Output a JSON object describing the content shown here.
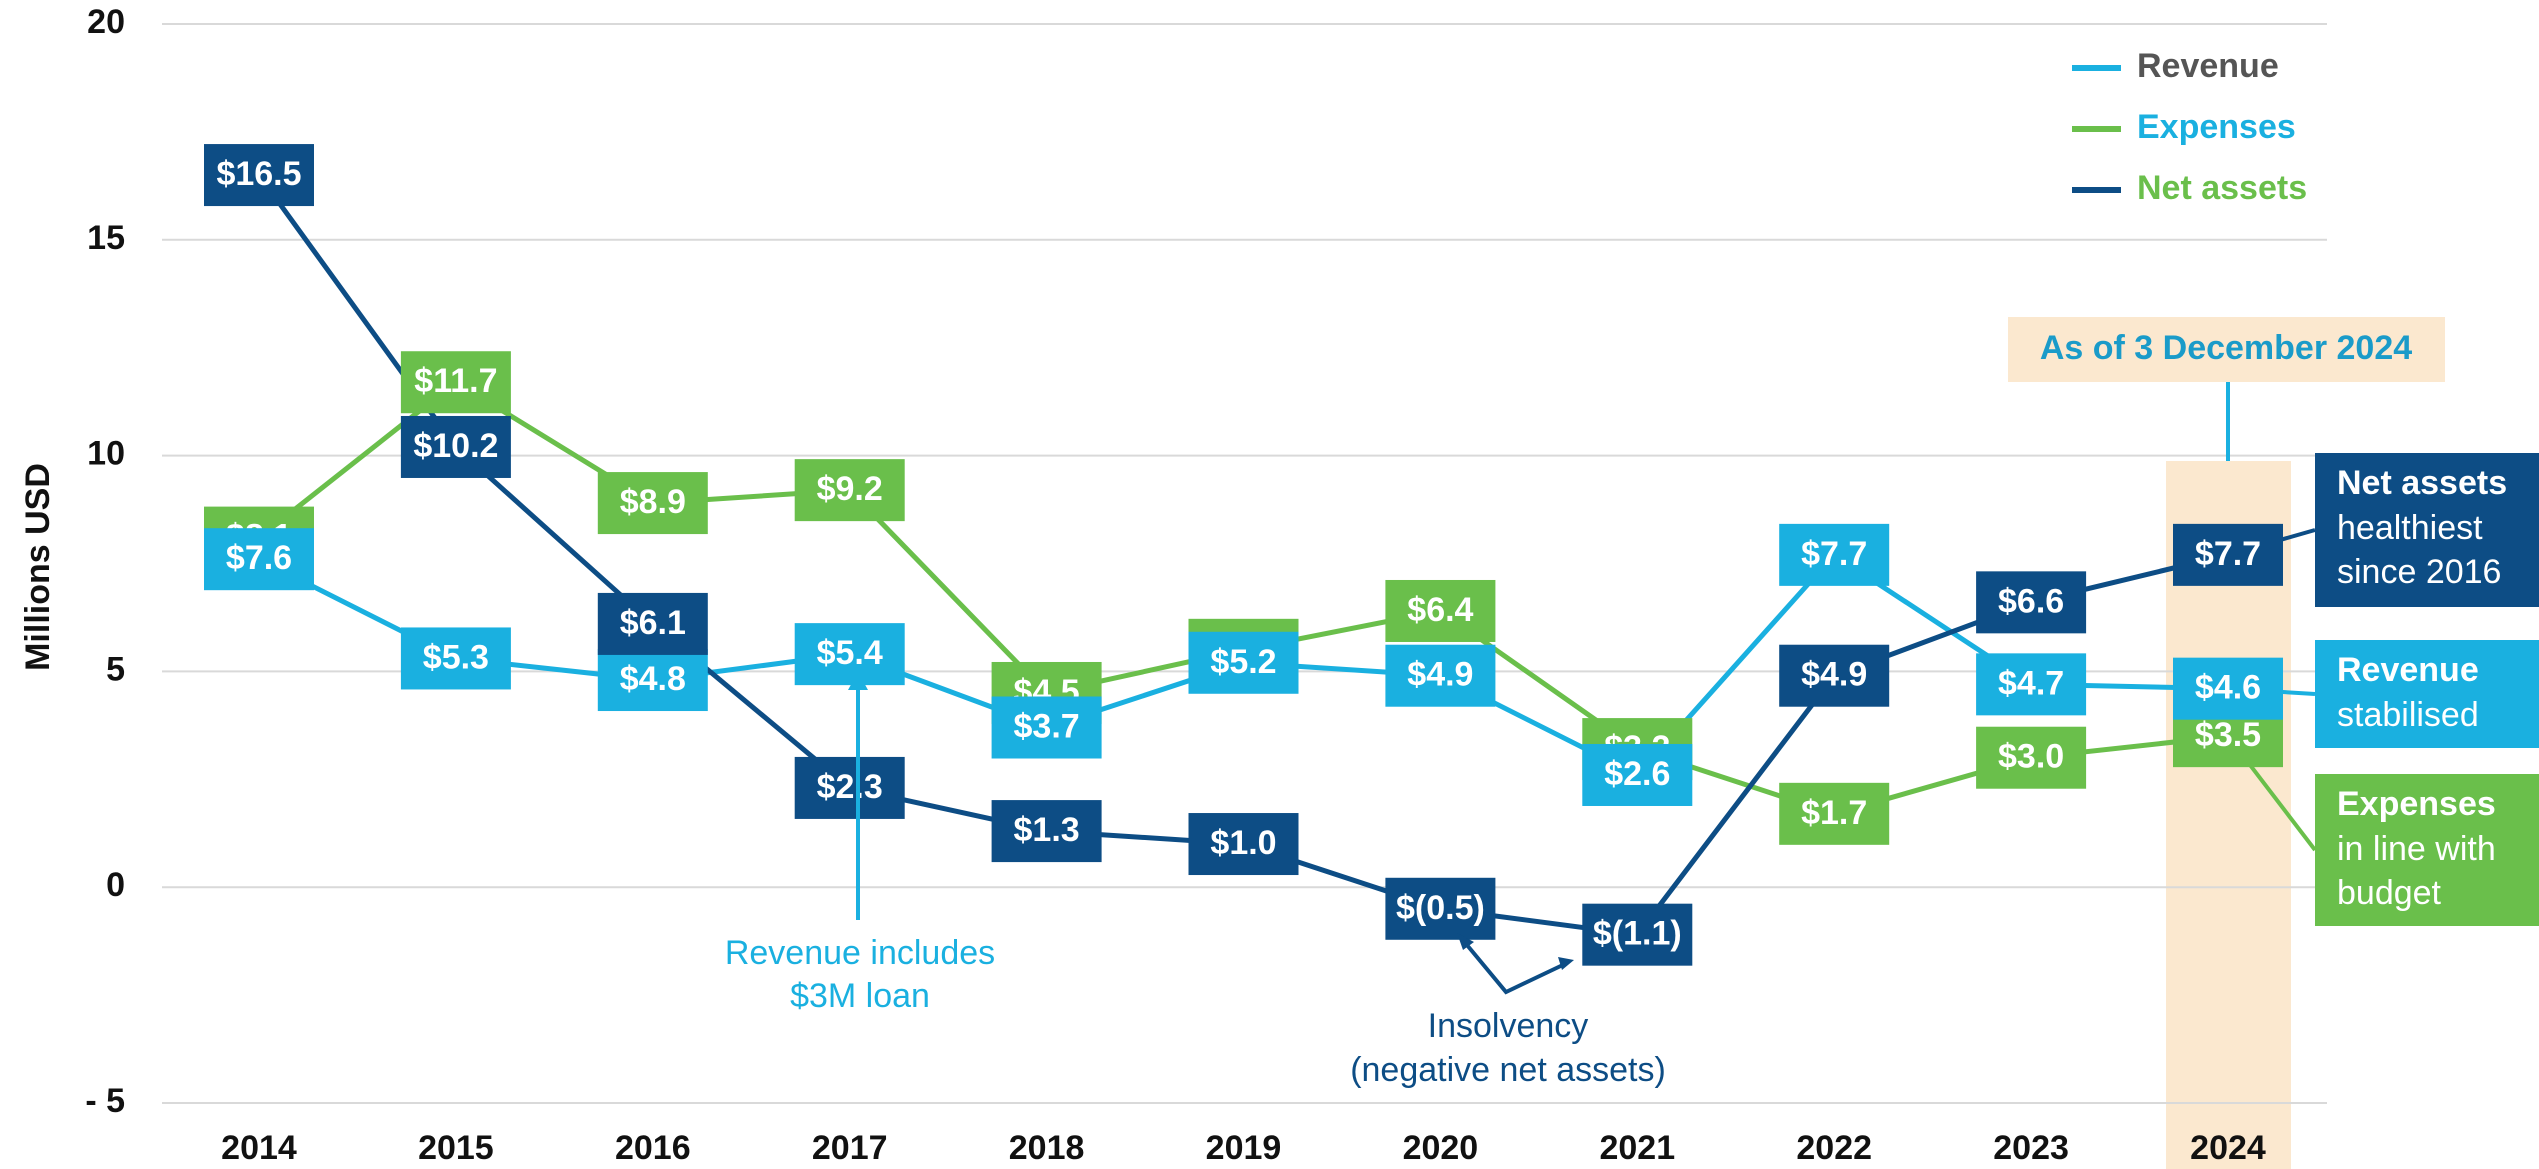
{
  "chart_data": {
    "type": "line",
    "y_axis_label": "Millions USD",
    "categories": [
      "2014",
      "2015",
      "2016",
      "2017",
      "2018",
      "2019",
      "2020",
      "2021",
      "2022",
      "2023",
      "2024"
    ],
    "series": [
      {
        "name": "Revenue",
        "color": "#1ab0e0",
        "legend_text_color": "#555555",
        "values": [
          7.6,
          5.3,
          4.8,
          5.4,
          3.7,
          5.2,
          4.9,
          2.6,
          7.7,
          4.7,
          4.6
        ],
        "value_labels": [
          "$7.6",
          "$5.3",
          "$4.8",
          "$5.4",
          "$3.7",
          "$5.2",
          "$4.9",
          "$2.6",
          "$7.7",
          "$4.7",
          "$4.6"
        ]
      },
      {
        "name": "Expenses",
        "color": "#6abf4b",
        "legend_text_color": "#1ab0e0",
        "values": [
          8.1,
          11.7,
          8.9,
          9.2,
          4.5,
          5.5,
          6.4,
          3.2,
          1.7,
          3.0,
          3.5
        ],
        "value_labels": [
          "$8.1",
          "$11.7",
          "$8.9",
          "$9.2",
          "$4.5",
          "$5.5",
          "$6.4",
          "$3.2",
          "$1.7",
          "$3.0",
          "$3.5"
        ]
      },
      {
        "name": "Net assets",
        "color": "#0d4d85",
        "legend_text_color": "#6abf4b",
        "values": [
          16.5,
          10.2,
          6.1,
          2.3,
          1.3,
          1.0,
          -0.5,
          -1.1,
          4.9,
          6.6,
          7.7
        ],
        "value_labels": [
          "$16.5",
          "$10.2",
          "$6.1",
          "$2.3",
          "$1.3",
          "$1.0",
          "$(0.5)",
          "$(1.1)",
          "$4.9",
          "$6.6",
          "$7.7"
        ]
      }
    ],
    "ylim": [
      -5,
      20
    ],
    "yticks": [
      {
        "value": -5,
        "label": "- 5"
      },
      0,
      5,
      10,
      15,
      20
    ],
    "grid": true,
    "legend": "top-right",
    "highlight_label": "As of 3 December 2024",
    "annotations": [
      {
        "lines": [
          "Revenue includes",
          "$3M loan"
        ]
      },
      {
        "lines": [
          "Insolvency",
          "(negative net assets)"
        ]
      }
    ],
    "side_notes": [
      {
        "title": "Net assets",
        "lines": [
          "healthiest",
          "since 2016"
        ]
      },
      {
        "title": "Revenue",
        "lines": [
          "stabilised"
        ]
      },
      {
        "title": "Expenses",
        "lines": [
          "in line with",
          "budget"
        ]
      }
    ]
  }
}
